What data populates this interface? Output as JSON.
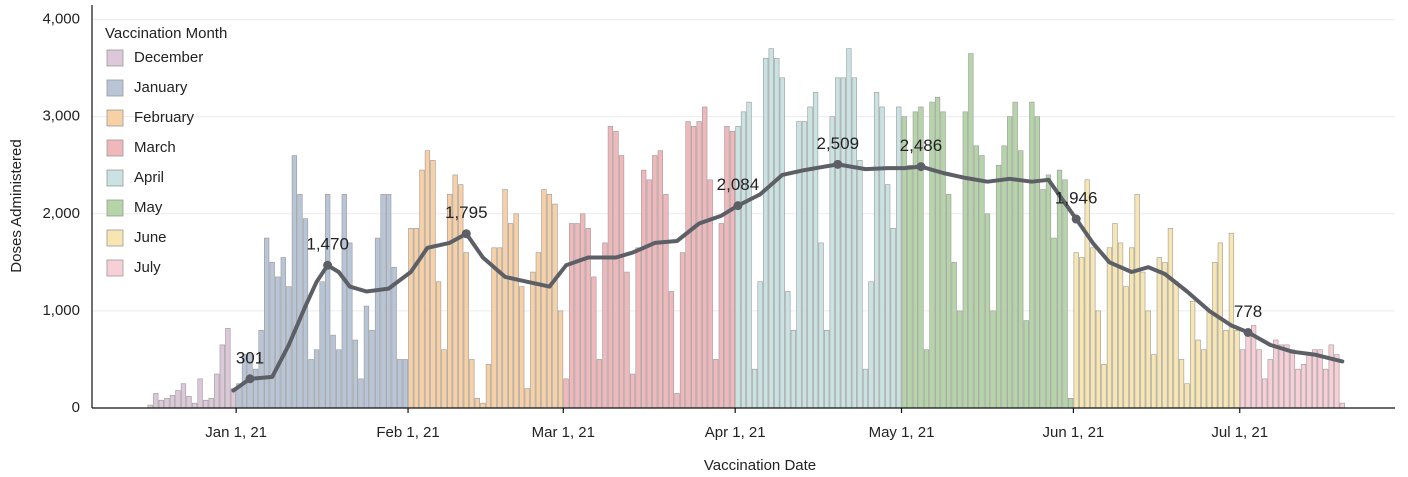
{
  "chart_data": {
    "type": "bar",
    "xlabel": "Vaccination Date",
    "ylabel": "Doses Administered",
    "legend_title": "Vaccination Month",
    "legend": "upper left",
    "xlim": [
      "2020-12-06",
      "2021-07-29"
    ],
    "ylim": [
      0,
      4150
    ],
    "xticks": [
      {
        "value": "2021-01-01",
        "label": "Jan 1, 21"
      },
      {
        "value": "2021-02-01",
        "label": "Feb 1, 21"
      },
      {
        "value": "2021-03-01",
        "label": "Mar 1, 21"
      },
      {
        "value": "2021-04-01",
        "label": "Apr 1, 21"
      },
      {
        "value": "2021-05-01",
        "label": "May 1, 21"
      },
      {
        "value": "2021-06-01",
        "label": "Jun 1, 21"
      },
      {
        "value": "2021-07-01",
        "label": "Jul 1, 21"
      }
    ],
    "yticks": [
      0,
      {
        "value": 1000,
        "label": "1,000"
      },
      {
        "value": 2000,
        "label": "2,000"
      },
      {
        "value": 3000,
        "label": "3,000"
      },
      {
        "value": 4000,
        "label": "4,000"
      }
    ],
    "grid": true,
    "series": [
      {
        "name": "December",
        "color": "#ddc8da",
        "x": [
          "2020-12-16",
          "2020-12-17",
          "2020-12-18",
          "2020-12-19",
          "2020-12-20",
          "2020-12-21",
          "2020-12-22",
          "2020-12-23",
          "2020-12-24",
          "2020-12-25",
          "2020-12-26",
          "2020-12-27",
          "2020-12-28",
          "2020-12-29",
          "2020-12-30",
          "2020-12-31"
        ],
        "values": [
          30,
          150,
          80,
          100,
          130,
          180,
          250,
          120,
          50,
          300,
          80,
          100,
          350,
          650,
          820,
          200
        ]
      },
      {
        "name": "January",
        "color": "#b8c5d7",
        "x": [
          "2021-01-01",
          "2021-01-02",
          "2021-01-03",
          "2021-01-04",
          "2021-01-05",
          "2021-01-06",
          "2021-01-07",
          "2021-01-08",
          "2021-01-09",
          "2021-01-10",
          "2021-01-11",
          "2021-01-12",
          "2021-01-13",
          "2021-01-14",
          "2021-01-15",
          "2021-01-16",
          "2021-01-17",
          "2021-01-18",
          "2021-01-19",
          "2021-01-20",
          "2021-01-21",
          "2021-01-22",
          "2021-01-23",
          "2021-01-24",
          "2021-01-25",
          "2021-01-26",
          "2021-01-27",
          "2021-01-28",
          "2021-01-29",
          "2021-01-30",
          "2021-01-31"
        ],
        "values": [
          250,
          550,
          550,
          400,
          800,
          1750,
          1500,
          1350,
          1550,
          1250,
          2600,
          2200,
          1950,
          500,
          600,
          1300,
          2200,
          750,
          600,
          2200,
          1700,
          700,
          300,
          1050,
          800,
          1750,
          2200,
          2200,
          1450,
          500,
          500
        ]
      },
      {
        "name": "February",
        "color": "#f7d0a6",
        "x": [
          "2021-02-01",
          "2021-02-02",
          "2021-02-03",
          "2021-02-04",
          "2021-02-05",
          "2021-02-06",
          "2021-02-07",
          "2021-02-08",
          "2021-02-09",
          "2021-02-10",
          "2021-02-11",
          "2021-02-12",
          "2021-02-13",
          "2021-02-14",
          "2021-02-15",
          "2021-02-16",
          "2021-02-17",
          "2021-02-18",
          "2021-02-19",
          "2021-02-20",
          "2021-02-21",
          "2021-02-22",
          "2021-02-23",
          "2021-02-24",
          "2021-02-25",
          "2021-02-26",
          "2021-02-27",
          "2021-02-28"
        ],
        "values": [
          1850,
          1850,
          2450,
          2650,
          2550,
          1300,
          600,
          2200,
          2400,
          2300,
          1600,
          500,
          100,
          50,
          450,
          1650,
          1650,
          2250,
          1900,
          2000,
          1250,
          200,
          1400,
          1600,
          2250,
          2200,
          2100,
          1000
        ]
      },
      {
        "name": "March",
        "color": "#f0b8bb",
        "x": [
          "2021-03-01",
          "2021-03-02",
          "2021-03-03",
          "2021-03-04",
          "2021-03-05",
          "2021-03-06",
          "2021-03-07",
          "2021-03-08",
          "2021-03-09",
          "2021-03-10",
          "2021-03-11",
          "2021-03-12",
          "2021-03-13",
          "2021-03-14",
          "2021-03-15",
          "2021-03-16",
          "2021-03-17",
          "2021-03-18",
          "2021-03-19",
          "2021-03-20",
          "2021-03-21",
          "2021-03-22",
          "2021-03-23",
          "2021-03-24",
          "2021-03-25",
          "2021-03-26",
          "2021-03-27",
          "2021-03-28",
          "2021-03-29",
          "2021-03-30",
          "2021-03-31"
        ],
        "values": [
          300,
          1900,
          1900,
          2000,
          1850,
          1350,
          500,
          1700,
          2900,
          2850,
          2600,
          1400,
          350,
          1650,
          2450,
          2350,
          2600,
          2650,
          2200,
          1200,
          150,
          1600,
          2950,
          2900,
          2950,
          3100,
          2350,
          500,
          1900,
          2900,
          2850
        ]
      },
      {
        "name": "April",
        "color": "#cae2e2",
        "x": [
          "2021-04-01",
          "2021-04-02",
          "2021-04-03",
          "2021-04-04",
          "2021-04-05",
          "2021-04-06",
          "2021-04-07",
          "2021-04-08",
          "2021-04-09",
          "2021-04-10",
          "2021-04-11",
          "2021-04-12",
          "2021-04-13",
          "2021-04-14",
          "2021-04-15",
          "2021-04-16",
          "2021-04-17",
          "2021-04-18",
          "2021-04-19",
          "2021-04-20",
          "2021-04-21",
          "2021-04-22",
          "2021-04-23",
          "2021-04-24",
          "2021-04-25",
          "2021-04-26",
          "2021-04-27",
          "2021-04-28",
          "2021-04-29",
          "2021-04-30"
        ],
        "values": [
          2900,
          3050,
          3150,
          400,
          1300,
          3600,
          3700,
          3600,
          3400,
          1200,
          800,
          2950,
          2950,
          3100,
          3250,
          1700,
          800,
          3000,
          3400,
          3400,
          3700,
          3400,
          2550,
          400,
          1300,
          3250,
          3100,
          2300,
          1850,
          3100
        ]
      },
      {
        "name": "May",
        "color": "#b5d5a9",
        "x": [
          "2021-05-01",
          "2021-05-02",
          "2021-05-03",
          "2021-05-04",
          "2021-05-05",
          "2021-05-06",
          "2021-05-07",
          "2021-05-08",
          "2021-05-09",
          "2021-05-10",
          "2021-05-11",
          "2021-05-12",
          "2021-05-13",
          "2021-05-14",
          "2021-05-15",
          "2021-05-16",
          "2021-05-17",
          "2021-05-18",
          "2021-05-19",
          "2021-05-20",
          "2021-05-21",
          "2021-05-22",
          "2021-05-23",
          "2021-05-24",
          "2021-05-25",
          "2021-05-26",
          "2021-05-27",
          "2021-05-28",
          "2021-05-29",
          "2021-05-30",
          "2021-05-31"
        ],
        "values": [
          3000,
          2500,
          3050,
          3100,
          600,
          3150,
          3200,
          3050,
          2200,
          1500,
          1000,
          3050,
          3650,
          2700,
          2600,
          2000,
          1000,
          2500,
          2700,
          3000,
          3150,
          2650,
          900,
          3150,
          3000,
          2250,
          2400,
          1750,
          2450,
          2350,
          100
        ]
      },
      {
        "name": "June",
        "color": "#f7e6b2",
        "x": [
          "2021-06-01",
          "2021-06-02",
          "2021-06-03",
          "2021-06-04",
          "2021-06-05",
          "2021-06-06",
          "2021-06-07",
          "2021-06-08",
          "2021-06-09",
          "2021-06-10",
          "2021-06-11",
          "2021-06-12",
          "2021-06-13",
          "2021-06-14",
          "2021-06-15",
          "2021-06-16",
          "2021-06-17",
          "2021-06-18",
          "2021-06-19",
          "2021-06-20",
          "2021-06-21",
          "2021-06-22",
          "2021-06-23",
          "2021-06-24",
          "2021-06-25",
          "2021-06-26",
          "2021-06-27",
          "2021-06-28",
          "2021-06-29",
          "2021-06-30"
        ],
        "values": [
          1600,
          1550,
          2350,
          1650,
          1000,
          450,
          1650,
          1900,
          1700,
          1250,
          1650,
          2200,
          1400,
          1000,
          550,
          1550,
          1500,
          1850,
          1300,
          500,
          250,
          1100,
          700,
          600,
          1000,
          1500,
          1700,
          800,
          1800,
          800
        ]
      },
      {
        "name": "July",
        "color": "#f9cfd7",
        "x": [
          "2021-07-01",
          "2021-07-02",
          "2021-07-03",
          "2021-07-04",
          "2021-07-05",
          "2021-07-06",
          "2021-07-07",
          "2021-07-08",
          "2021-07-09",
          "2021-07-10",
          "2021-07-11",
          "2021-07-12",
          "2021-07-13",
          "2021-07-14",
          "2021-07-15",
          "2021-07-16",
          "2021-07-17",
          "2021-07-18",
          "2021-07-19"
        ],
        "values": [
          600,
          800,
          850,
          600,
          300,
          500,
          700,
          650,
          650,
          600,
          400,
          450,
          550,
          600,
          600,
          400,
          650,
          550,
          50
        ]
      }
    ],
    "line": {
      "color": "#5d5f66",
      "x": [
        "2020-12-31",
        "2021-01-03",
        "2021-01-07",
        "2021-01-10",
        "2021-01-13",
        "2021-01-15",
        "2021-01-17",
        "2021-01-19",
        "2021-01-21",
        "2021-01-24",
        "2021-01-28",
        "2021-02-01",
        "2021-02-04",
        "2021-02-08",
        "2021-02-11",
        "2021-02-14",
        "2021-02-18",
        "2021-02-22",
        "2021-02-26",
        "2021-03-01",
        "2021-03-05",
        "2021-03-10",
        "2021-03-13",
        "2021-03-17",
        "2021-03-21",
        "2021-03-25",
        "2021-03-29",
        "2021-04-01",
        "2021-04-05",
        "2021-04-09",
        "2021-04-13",
        "2021-04-16",
        "2021-04-19",
        "2021-04-24",
        "2021-04-28",
        "2021-05-01",
        "2021-05-04",
        "2021-05-08",
        "2021-05-12",
        "2021-05-16",
        "2021-05-20",
        "2021-05-24",
        "2021-05-27",
        "2021-06-01",
        "2021-06-04",
        "2021-06-07",
        "2021-06-11",
        "2021-06-14",
        "2021-06-17",
        "2021-06-21",
        "2021-06-25",
        "2021-06-29",
        "2021-07-02",
        "2021-07-06",
        "2021-07-10",
        "2021-07-14",
        "2021-07-19"
      ],
      "values": [
        180,
        301,
        320,
        650,
        1050,
        1300,
        1470,
        1400,
        1250,
        1200,
        1230,
        1400,
        1650,
        1700,
        1795,
        1550,
        1350,
        1300,
        1250,
        1470,
        1550,
        1550,
        1600,
        1700,
        1720,
        1900,
        1980,
        2084,
        2200,
        2400,
        2450,
        2480,
        2509,
        2460,
        2470,
        2470,
        2486,
        2420,
        2370,
        2330,
        2360,
        2330,
        2350,
        1946,
        1700,
        1500,
        1400,
        1450,
        1380,
        1200,
        1000,
        850,
        778,
        650,
        580,
        550,
        480
      ],
      "value_labels": [
        null,
        "301",
        null,
        null,
        null,
        null,
        "1,470",
        null,
        null,
        null,
        null,
        null,
        null,
        null,
        "1,795",
        null,
        null,
        null,
        null,
        null,
        null,
        null,
        null,
        null,
        null,
        null,
        null,
        "2,084",
        null,
        null,
        null,
        null,
        "2,509",
        null,
        null,
        null,
        "2,486",
        null,
        null,
        null,
        null,
        null,
        null,
        "1,946",
        null,
        null,
        null,
        null,
        null,
        null,
        null,
        null,
        "778",
        null,
        null,
        null,
        null
      ]
    }
  }
}
